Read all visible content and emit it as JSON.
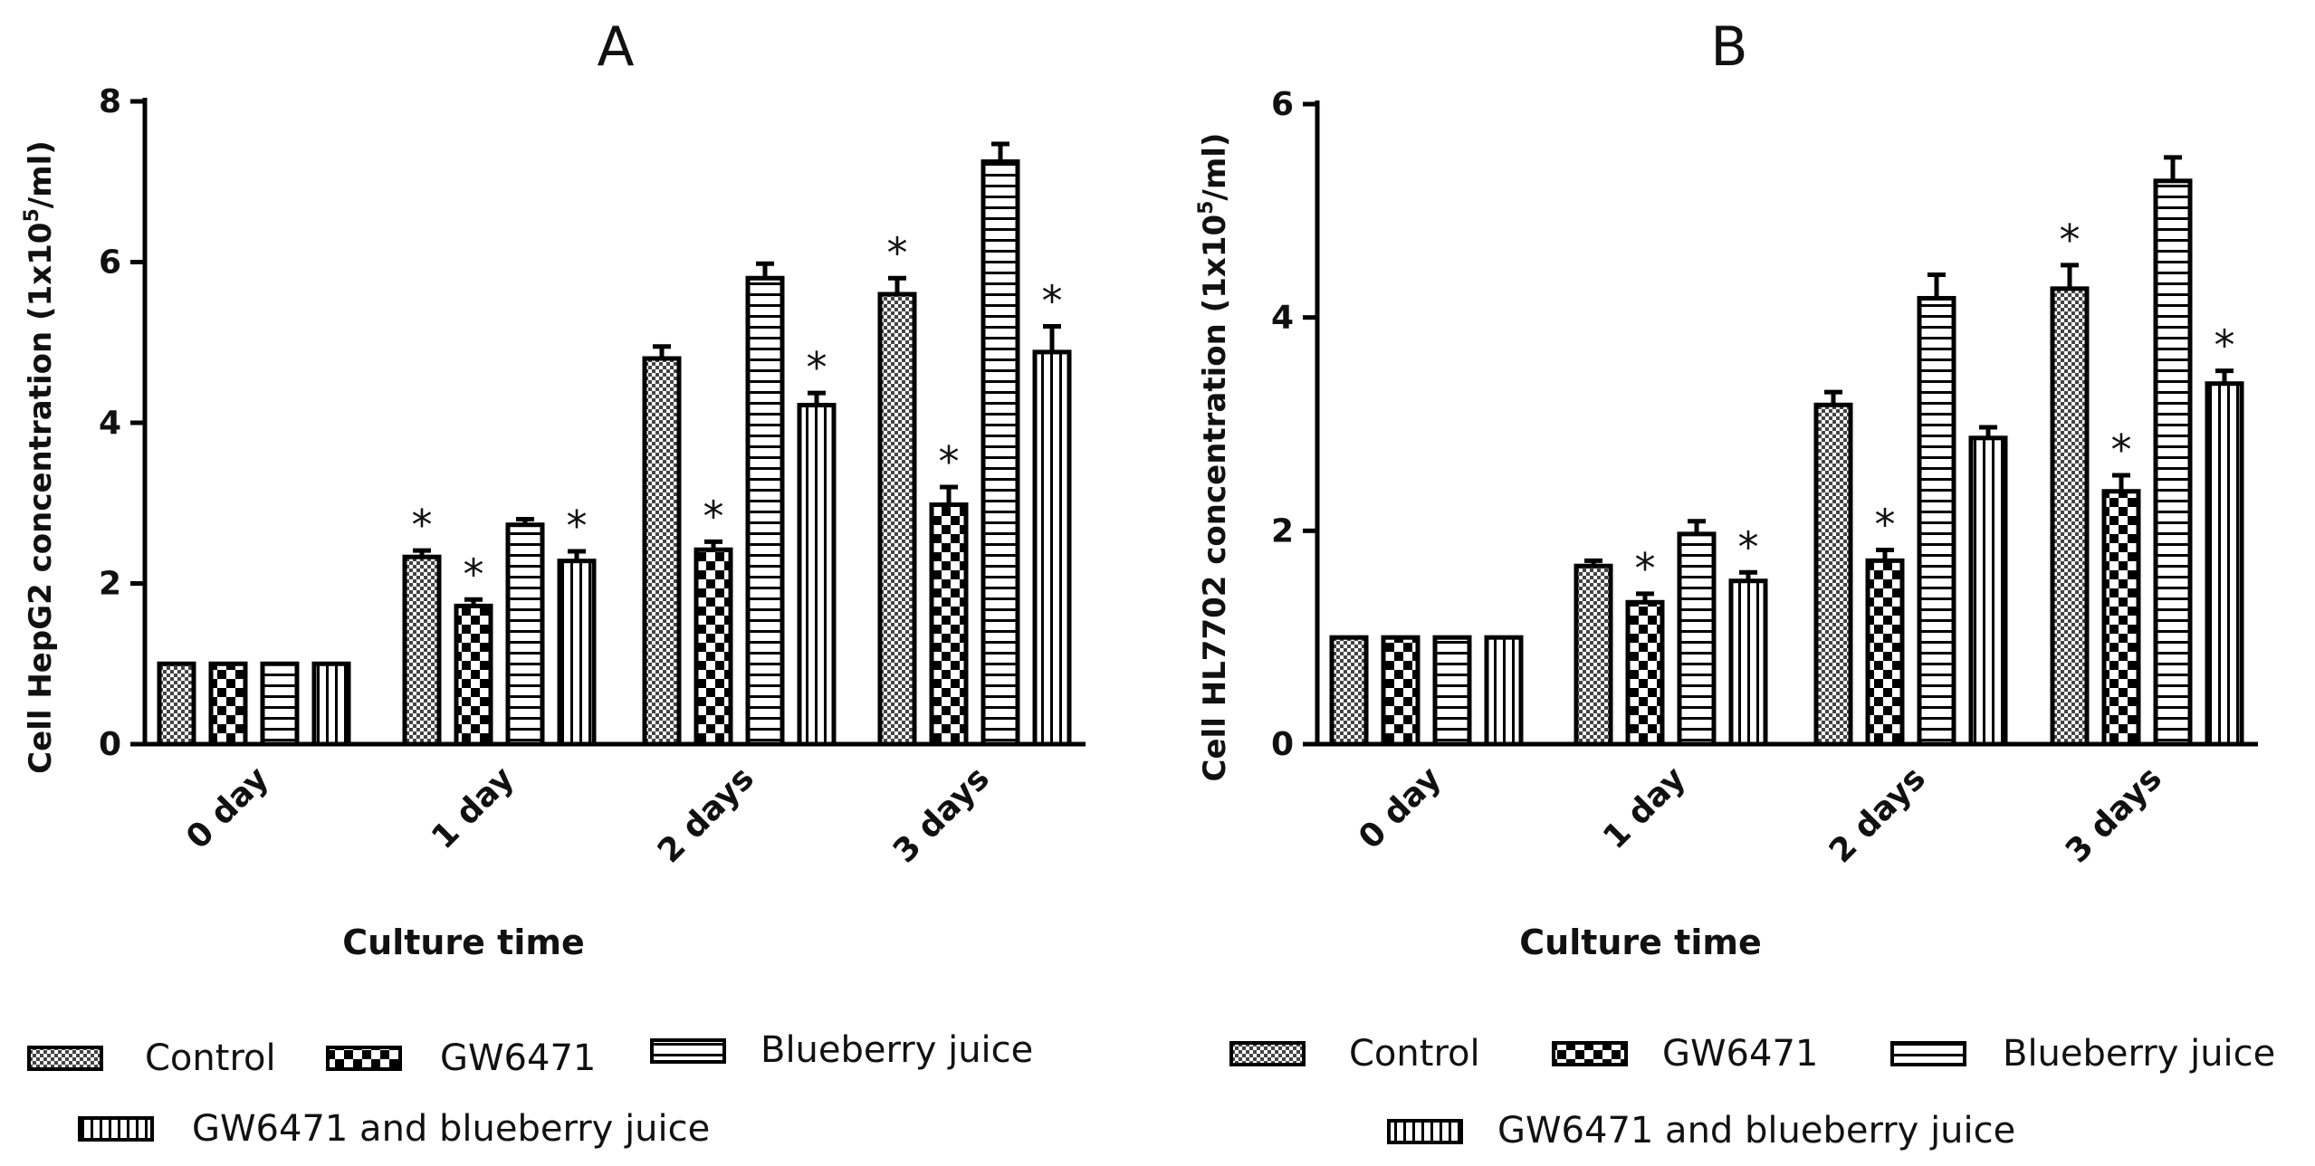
{
  "chart_data": [
    {
      "type": "bar",
      "panel_label": "A",
      "ylabel_main": "Cell HepG2 concentration (1x10",
      "ylabel_sup": "5",
      "ylabel_tail": "/ml)",
      "xlabel": "Culture time",
      "ylim": [
        0,
        8
      ],
      "yticks": [
        "0",
        "2",
        "4",
        "6",
        "8"
      ],
      "categories": [
        "0 day",
        "1 day",
        "2 days",
        "3 days"
      ],
      "series": [
        {
          "name": "Control",
          "values": [
            1.0,
            2.33,
            4.8,
            5.6
          ],
          "errors": [
            0,
            0.08,
            0.15,
            0.2
          ],
          "significant": [
            false,
            true,
            false,
            true
          ]
        },
        {
          "name": "GW6471",
          "values": [
            1.0,
            1.72,
            2.42,
            2.98
          ],
          "errors": [
            0,
            0.08,
            0.1,
            0.22
          ],
          "significant": [
            false,
            true,
            true,
            true
          ]
        },
        {
          "name": "Blueberry juice",
          "values": [
            1.0,
            2.73,
            5.8,
            7.25
          ],
          "errors": [
            0,
            0.07,
            0.18,
            0.22
          ],
          "significant": [
            false,
            false,
            false,
            false
          ]
        },
        {
          "name": "GW6471 and blueberry juice",
          "values": [
            1.0,
            2.28,
            4.22,
            4.88
          ],
          "errors": [
            0,
            0.12,
            0.15,
            0.32
          ],
          "significant": [
            false,
            true,
            true,
            true
          ]
        }
      ],
      "significance_marker": "*"
    },
    {
      "type": "bar",
      "panel_label": "B",
      "ylabel_main": "Cell HL7702 concentration (1x10",
      "ylabel_sup": "5",
      "ylabel_tail": "/ml)",
      "xlabel": "Culture time",
      "ylim": [
        0,
        6
      ],
      "yticks": [
        "0",
        "2",
        "4",
        "6"
      ],
      "categories": [
        "0 day",
        "1 day",
        "2 days",
        "3 days"
      ],
      "series": [
        {
          "name": "Control",
          "values": [
            1.0,
            1.67,
            3.18,
            4.27
          ],
          "errors": [
            0,
            0.05,
            0.12,
            0.22
          ],
          "significant": [
            false,
            false,
            false,
            true
          ]
        },
        {
          "name": "GW6471",
          "values": [
            1.0,
            1.33,
            1.72,
            2.37
          ],
          "errors": [
            0,
            0.08,
            0.1,
            0.15
          ],
          "significant": [
            false,
            true,
            true,
            true
          ]
        },
        {
          "name": "Blueberry juice",
          "values": [
            1.0,
            1.97,
            4.18,
            5.28
          ],
          "errors": [
            0,
            0.12,
            0.22,
            0.22
          ],
          "significant": [
            false,
            false,
            false,
            false
          ]
        },
        {
          "name": "GW6471 and blueberry juice",
          "values": [
            1.0,
            1.53,
            2.87,
            3.38
          ],
          "errors": [
            0,
            0.08,
            0.1,
            0.12
          ],
          "significant": [
            false,
            true,
            false,
            true
          ]
        }
      ],
      "significance_marker": "*"
    }
  ],
  "legend": [
    "Control",
    "GW6471",
    "Blueberry juice",
    "GW6471 and blueberry juice"
  ]
}
